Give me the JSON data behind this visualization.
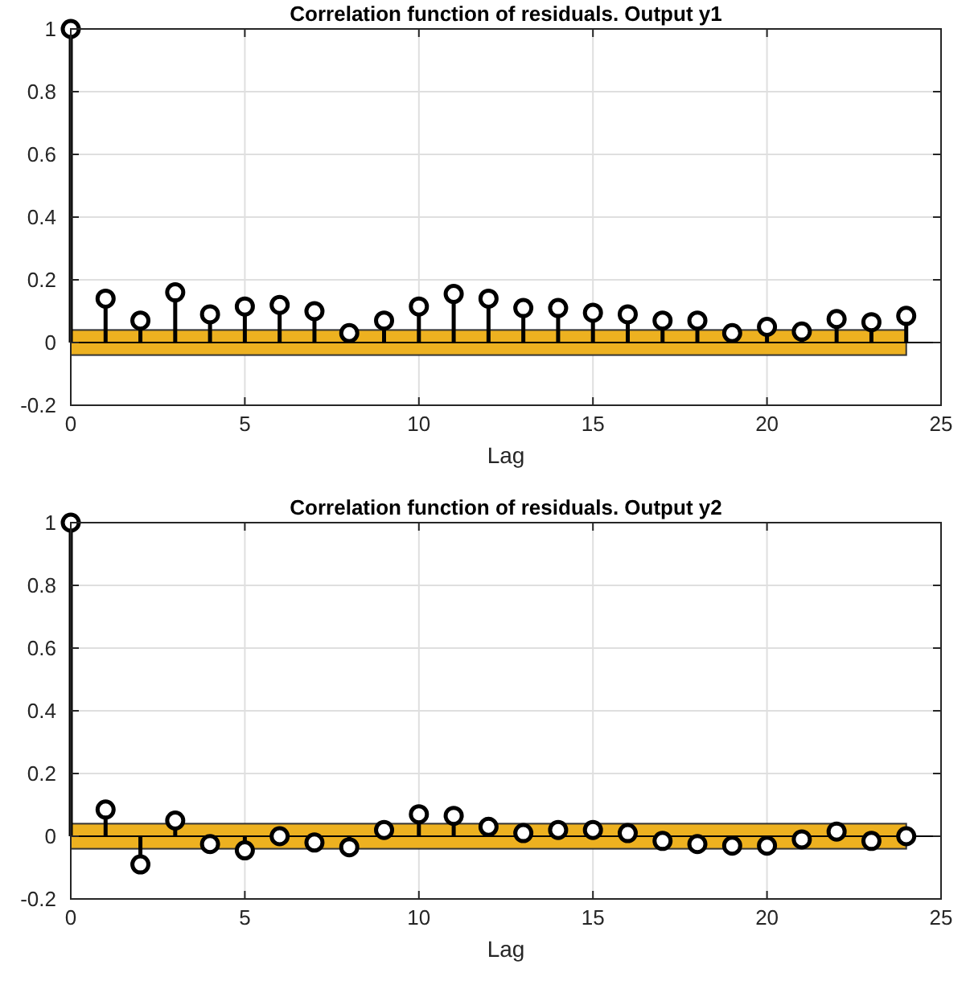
{
  "chart_data": [
    {
      "type": "lollipop",
      "title": "Correlation function of residuals. Output y1",
      "xlabel": "Lag",
      "x": [
        0,
        1,
        2,
        3,
        4,
        5,
        6,
        7,
        8,
        9,
        10,
        11,
        12,
        13,
        14,
        15,
        16,
        17,
        18,
        19,
        20,
        21,
        22,
        23,
        24
      ],
      "values": [
        1,
        0.14,
        0.07,
        0.16,
        0.09,
        0.115,
        0.12,
        0.1,
        0.03,
        0.07,
        0.115,
        0.155,
        0.14,
        0.11,
        0.11,
        0.095,
        0.09,
        0.07,
        0.07,
        0.03,
        0.05,
        0.035,
        0.075,
        0.065,
        0.085
      ],
      "color": "#000000",
      "marker": "circle",
      "grid": true,
      "bands": [
        {
          "axis": "y",
          "from": -0.04,
          "to": 0.04,
          "color": "#edb120"
        }
      ],
      "ref_lines": [
        {
          "axis": "y",
          "value": 0,
          "color": "#000000"
        }
      ],
      "xlim": [
        0,
        25
      ],
      "xticks": [
        0,
        5,
        10,
        15,
        20,
        25
      ],
      "ylim": [
        -0.2,
        1
      ],
      "yticks": [
        -0.2,
        0,
        0.2,
        0.4,
        0.6,
        0.8,
        1
      ]
    },
    {
      "type": "lollipop",
      "title": "Correlation function of residuals. Output y2",
      "xlabel": "Lag",
      "x": [
        0,
        1,
        2,
        3,
        4,
        5,
        6,
        7,
        8,
        9,
        10,
        11,
        12,
        13,
        14,
        15,
        16,
        17,
        18,
        19,
        20,
        21,
        22,
        23,
        24
      ],
      "values": [
        1,
        0.085,
        -0.09,
        0.05,
        -0.025,
        -0.045,
        0,
        -0.02,
        -0.035,
        0.02,
        0.07,
        0.065,
        0.03,
        0.01,
        0.02,
        0.02,
        0.01,
        -0.015,
        -0.025,
        -0.03,
        -0.03,
        -0.01,
        0.015,
        -0.015,
        0
      ],
      "color": "#000000",
      "marker": "circle",
      "grid": true,
      "bands": [
        {
          "axis": "y",
          "from": -0.04,
          "to": 0.04,
          "color": "#edb120"
        }
      ],
      "ref_lines": [
        {
          "axis": "y",
          "value": 0,
          "color": "#000000"
        }
      ],
      "xlim": [
        0,
        25
      ],
      "xticks": [
        0,
        5,
        10,
        15,
        20,
        25
      ],
      "ylim": [
        -0.2,
        1
      ],
      "yticks": [
        -0.2,
        0,
        0.2,
        0.4,
        0.6,
        0.8,
        1
      ]
    }
  ]
}
